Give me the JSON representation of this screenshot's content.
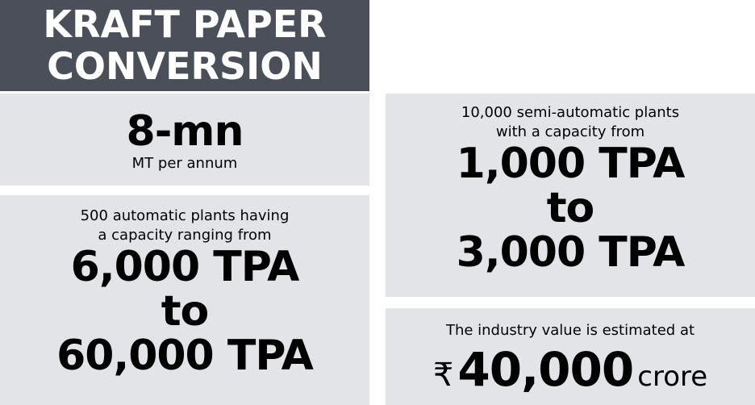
{
  "header": {
    "title_line1": "KRAFT PAPER",
    "title_line2": "CONVERSION"
  },
  "total": {
    "value": "8-mn",
    "unit": "MT per annum"
  },
  "automatic": {
    "desc_line1": "500 automatic plants having",
    "desc_line2": "a capacity ranging from",
    "from": "6,000 TPA",
    "to": "to",
    "upto": "60,000 TPA"
  },
  "semi_automatic": {
    "desc_line1": "10,000 semi-automatic plants",
    "desc_line2": "with a capacity from",
    "from": "1,000 TPA",
    "to": "to",
    "upto": "3,000 TPA"
  },
  "industry": {
    "desc": "The industry value is estimated at",
    "currency": "₹",
    "value": "40,000",
    "unit": "crore"
  },
  "colors": {
    "title_bg": "#4a4f59",
    "box_bg": "#e3e4e8"
  }
}
